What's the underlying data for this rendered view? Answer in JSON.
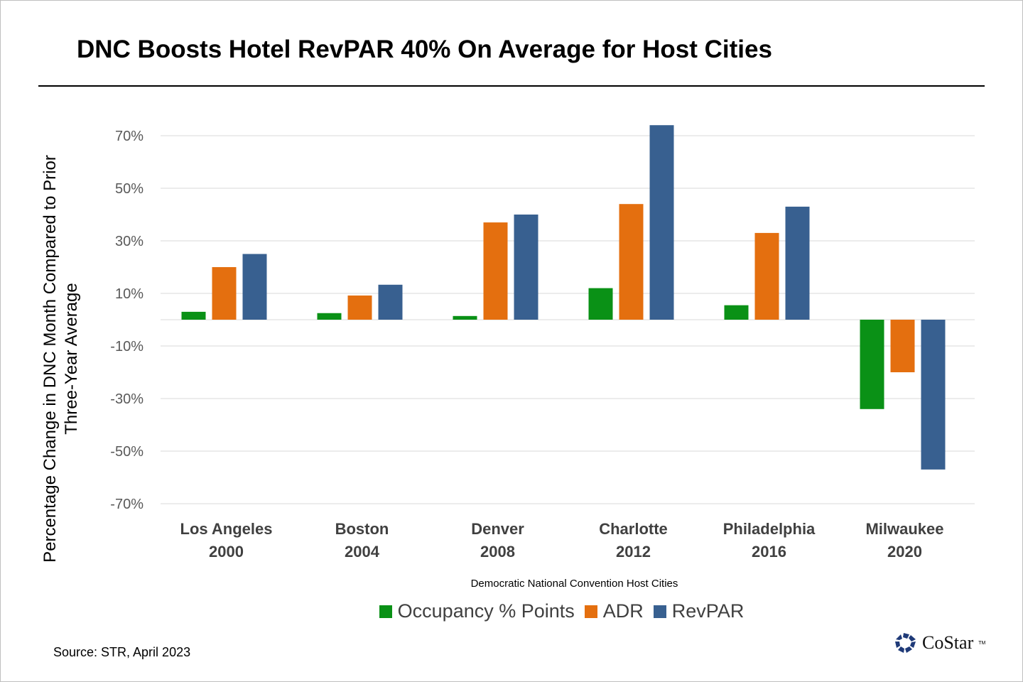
{
  "title": "DNC Boosts Hotel RevPAR 40% On Average for Host Cities",
  "source": "Source: STR, April 2023",
  "logo": {
    "text": "CoStar",
    "tm": "TM"
  },
  "colors": {
    "occupancy": "#0a9116",
    "adr": "#e46f0f",
    "revpar": "#386090",
    "grid": "#d9d9d9"
  },
  "chart_data": {
    "type": "bar",
    "title": "DNC Boosts Hotel RevPAR 40% On Average for Host Cities",
    "xlabel": "Democratic National Convention Host Cities",
    "ylabel": "Percentage Change in DNC Month Compared to Prior Three-Year Average",
    "ylim": [
      -75,
      75
    ],
    "y_ticks": [
      70,
      50,
      30,
      10,
      -10,
      -30,
      -50,
      -70
    ],
    "y_tick_labels": [
      "70%",
      "50%",
      "30%",
      "10%",
      "-10%",
      "-30%",
      "-50%",
      "-70%"
    ],
    "grid": true,
    "legend_position": "bottom",
    "categories": [
      {
        "city": "Los Angeles",
        "year": "2000"
      },
      {
        "city": "Boston",
        "year": "2004"
      },
      {
        "city": "Denver",
        "year": "2008"
      },
      {
        "city": "Charlotte",
        "year": "2012"
      },
      {
        "city": "Philadelphia",
        "year": "2016"
      },
      {
        "city": "Milwaukee",
        "year": "2020"
      }
    ],
    "series": [
      {
        "name": "Occupancy % Points",
        "color": "#0a9116",
        "values": [
          3,
          2.5,
          1.4,
          12,
          5.5,
          -34
        ]
      },
      {
        "name": "ADR",
        "color": "#e46f0f",
        "values": [
          20,
          9.2,
          37,
          44,
          33,
          -20
        ]
      },
      {
        "name": "RevPAR",
        "color": "#386090",
        "values": [
          25,
          13.3,
          40,
          74,
          43,
          -57
        ]
      }
    ]
  }
}
